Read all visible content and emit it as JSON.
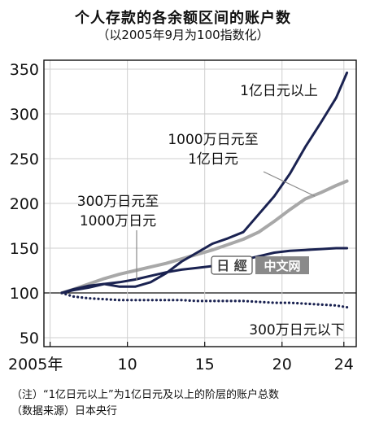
{
  "chart_data": {
    "type": "line",
    "title": "个人存款的各余额区间的账户数",
    "subtitle": "（以2005年9月为100指数化）",
    "x_tick_labels": [
      "2005年",
      "10",
      "15",
      "20",
      "24"
    ],
    "x_ticks": [
      2005,
      2010,
      2015,
      2020,
      2024
    ],
    "xlim": [
      2004.6,
      2024.8
    ],
    "y_ticks": [
      50,
      100,
      150,
      200,
      250,
      300,
      350
    ],
    "ylim": [
      40,
      360
    ],
    "grid": true,
    "series": [
      {
        "name": "1亿日元以上",
        "color": "#1a2251",
        "style": "solid",
        "x": [
          2005.75,
          2006.5,
          2007.5,
          2008.5,
          2009.5,
          2010.5,
          2011.5,
          2012.5,
          2013.5,
          2014.5,
          2015.5,
          2016.5,
          2017.5,
          2018.5,
          2019.5,
          2020.5,
          2021.5,
          2022.5,
          2023.5,
          2024.2
        ],
        "values": [
          100,
          103,
          106,
          110,
          107,
          107,
          112,
          122,
          135,
          145,
          155,
          161,
          168,
          188,
          208,
          233,
          263,
          290,
          318,
          346
        ]
      },
      {
        "name": "1000万日元至\n1亿日元",
        "color": "#a8a8a8",
        "style": "solid",
        "x": [
          2005.75,
          2006.5,
          2007.5,
          2008.5,
          2009.5,
          2010.5,
          2011.5,
          2012.5,
          2013.5,
          2014.5,
          2015.5,
          2016.5,
          2017.5,
          2018.5,
          2019.5,
          2020.5,
          2021.5,
          2022.5,
          2023.5,
          2024.2
        ],
        "values": [
          100,
          104,
          110,
          116,
          121,
          125,
          129,
          133,
          138,
          143,
          148,
          154,
          160,
          168,
          180,
          193,
          205,
          212,
          220,
          225
        ]
      },
      {
        "name": "300万日元至\n1000万日元",
        "color": "#1a2251",
        "style": "solid",
        "x": [
          2005.75,
          2006.5,
          2007.5,
          2008.5,
          2009.5,
          2010.5,
          2011.5,
          2012.5,
          2013.5,
          2014.5,
          2015.5,
          2016.5,
          2017.5,
          2018.5,
          2019.5,
          2020.5,
          2021.5,
          2022.5,
          2023.5,
          2024.2
        ],
        "values": [
          100,
          104,
          108,
          110,
          112,
          115,
          119,
          123,
          126,
          128,
          130,
          133,
          137,
          141,
          145,
          147,
          148,
          149,
          150,
          150
        ]
      },
      {
        "name": "300万日元以下",
        "color": "#1a2251",
        "style": "dotted",
        "x": [
          2005.75,
          2006.5,
          2007.5,
          2008.5,
          2009.5,
          2010.5,
          2011.5,
          2012.5,
          2013.5,
          2014.5,
          2015.5,
          2016.5,
          2017.5,
          2018.5,
          2019.5,
          2020.5,
          2021.5,
          2022.5,
          2023.5,
          2024.2
        ],
        "values": [
          100,
          96,
          94,
          93,
          92,
          92,
          92,
          92,
          92,
          91,
          91,
          91,
          91,
          90,
          89,
          89,
          88,
          87,
          86,
          84
        ]
      }
    ]
  },
  "notes": {
    "line1": "（注）“1亿日元以上”为1亿日元及以上的阶层的账户总数",
    "line2": "（数据来源）日本央行"
  },
  "watermark": {
    "logo_text": "日 經",
    "site_text": "中文网"
  }
}
